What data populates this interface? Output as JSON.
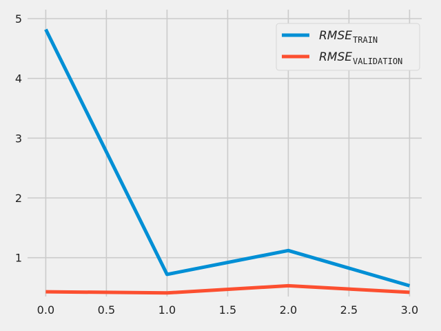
{
  "chart_data": {
    "type": "line",
    "title": "",
    "xlabel": "",
    "ylabel": "",
    "xlim": [
      -0.15,
      3.1
    ],
    "ylim": [
      0.35,
      5.15
    ],
    "x_ticks": [
      0.0,
      0.5,
      1.0,
      1.5,
      2.0,
      2.5,
      3.0
    ],
    "x_tick_labels": [
      "0.0",
      "0.5",
      "1.0",
      "1.5",
      "2.0",
      "2.5",
      "3.0"
    ],
    "y_ticks": [
      1,
      2,
      3,
      4,
      5
    ],
    "y_tick_labels": [
      "1",
      "2",
      "3",
      "4",
      "5"
    ],
    "grid": true,
    "legend_position": "top-right",
    "series": [
      {
        "name_main": "RMSE",
        "name_sub": "TRAIN",
        "color": "#008fd5",
        "x": [
          0,
          1,
          2,
          3
        ],
        "y": [
          4.82,
          0.72,
          1.12,
          0.53
        ]
      },
      {
        "name_main": "RMSE",
        "name_sub": "VALIDATION",
        "color": "#fc4f30",
        "x": [
          0,
          1,
          2,
          3
        ],
        "y": [
          0.43,
          0.41,
          0.53,
          0.42
        ]
      }
    ]
  }
}
